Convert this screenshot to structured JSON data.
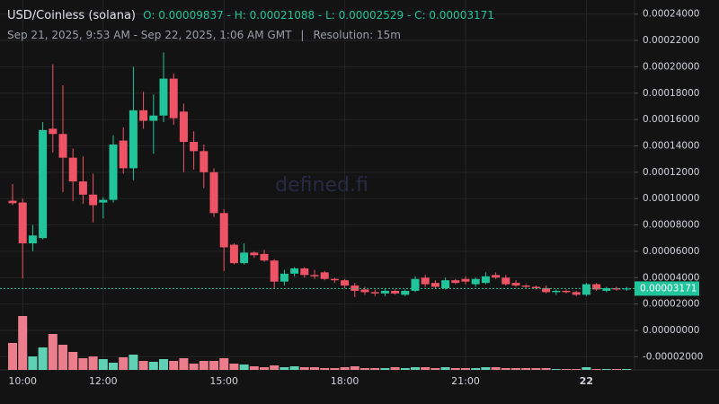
{
  "chart_data": {
    "type": "candlestick",
    "title": "USD/Coinless (solana)",
    "ohlc_summary": "O: 0.00009837 - H: 0.00021088 - L: 0.00002529 - C: 0.00003171",
    "date_range": "Sep 21, 2025, 9:53 AM - Sep 22, 2025, 1:06 AM GMT",
    "resolution": "Resolution: 15m",
    "watermark": "defined.fi",
    "up_color": "#22c49b",
    "down_color": "#ef5466",
    "volume_up_color": "#5fd2b6",
    "volume_down_color": "#ec7d8c",
    "grid": true,
    "categories": [
      null,
      "10:00",
      null,
      null,
      null,
      null,
      null,
      null,
      null,
      "12:00",
      null,
      null,
      null,
      null,
      null,
      null,
      null,
      null,
      null,
      null,
      null,
      "15:00",
      null,
      null,
      null,
      null,
      null,
      null,
      null,
      null,
      null,
      null,
      null,
      "18:00",
      null,
      null,
      null,
      null,
      null,
      null,
      null,
      null,
      null,
      null,
      null,
      "21:00",
      null,
      null,
      null,
      null,
      null,
      null,
      null,
      null,
      null,
      null,
      null,
      "22",
      null,
      null,
      null,
      null
    ],
    "open": [
      9.837e-05,
      9.7e-05,
      6.6e-05,
      7e-05,
      0.000153,
      0.000149,
      0.000131,
      0.000113,
      0.000103,
      9.7e-05,
      9.9e-05,
      0.000144,
      0.000123,
      0.000167,
      0.000159,
      0.000163,
      0.000191,
      0.000166,
      0.000143,
      0.000136,
      0.00012,
      8.9e-05,
      6.5e-05,
      5.1e-05,
      5.9e-05,
      5.8e-05,
      5.3e-05,
      3.7e-05,
      4.3e-05,
      4.7e-05,
      4.2e-05,
      4.4e-05,
      3.9e-05,
      3.8e-05,
      3.4e-05,
      3.1e-05,
      2.9e-05,
      2.8e-05,
      3e-05,
      2.7e-05,
      3e-05,
      4e-05,
      3.6e-05,
      3.2e-05,
      3.8e-05,
      3.9e-05,
      3.5e-05,
      3.6e-05,
      4.2e-05,
      4e-05,
      3.6e-05,
      3.4e-05,
      3.3e-05,
      3.2e-05,
      2.9e-05,
      3e-05,
      2.9e-05,
      2.7e-05,
      3.5e-05,
      3e-05,
      3.2e-05,
      3.1e-05
    ],
    "high": [
      0.000111,
      0.0001,
      8e-05,
      0.000158,
      0.000202,
      0.000186,
      0.000138,
      0.000132,
      0.000119,
      0.000101,
      0.000148,
      0.000154,
      0.0002,
      0.000181,
      0.000179,
      0.00021088,
      0.000195,
      0.000172,
      0.000151,
      0.000141,
      0.000123,
      9.2e-05,
      6.6e-05,
      6.6e-05,
      6e-05,
      6.1e-05,
      5.4e-05,
      4.6e-05,
      4.8e-05,
      4.8e-05,
      4.6e-05,
      4.5e-05,
      4e-05,
      3.9e-05,
      3.6e-05,
      3.3e-05,
      3.1e-05,
      3.2e-05,
      3.1e-05,
      3.1e-05,
      4.1e-05,
      4.2e-05,
      3.8e-05,
      4e-05,
      3.9e-05,
      4.1e-05,
      4e-05,
      4.4e-05,
      4.4e-05,
      4.2e-05,
      3.8e-05,
      3.5e-05,
      3.4e-05,
      3.4e-05,
      3.1e-05,
      3.1e-05,
      3e-05,
      3.6e-05,
      3.6e-05,
      3.3e-05,
      3.3e-05,
      3.3e-05
    ],
    "low": [
      9.5e-05,
      3.94e-05,
      6e-05,
      6.9e-05,
      0.000135,
      0.000105,
      9.8e-05,
      9.6e-05,
      8.2e-05,
      8.5e-05,
      9.7e-05,
      0.000119,
      0.000114,
      0.000153,
      0.000134,
      0.000158,
      0.000156,
      0.00012,
      0.000122,
      0.000108,
      8.6e-05,
      4.5e-05,
      5e-05,
      5e-05,
      5.5e-05,
      5.2e-05,
      3.2e-05,
      3.4e-05,
      4.1e-05,
      4e-05,
      3.9e-05,
      3.8e-05,
      3.6e-05,
      3.2e-05,
      2.529e-05,
      2.7e-05,
      2.6e-05,
      2.6e-05,
      2.7e-05,
      2.6e-05,
      2.9e-05,
      3.3e-05,
      3.2e-05,
      3.1e-05,
      3.5e-05,
      3.5e-05,
      3.3e-05,
      3.5e-05,
      3.9e-05,
      3.4e-05,
      3.3e-05,
      3.2e-05,
      3.1e-05,
      2.8e-05,
      2.7e-05,
      2.8e-05,
      2.6e-05,
      2.6e-05,
      3e-05,
      2.9e-05,
      3e-05,
      3e-05
    ],
    "close": [
      9.65e-05,
      6.6e-05,
      7.2e-05,
      0.000152,
      0.000149,
      0.000131,
      0.000113,
      0.000103,
      9.5e-05,
      9.9e-05,
      0.000141,
      0.000123,
      0.000167,
      0.000159,
      0.000163,
      0.000191,
      0.000161,
      0.000143,
      0.000136,
      0.00012,
      8.9e-05,
      6.3e-05,
      5.1e-05,
      5.9e-05,
      5.7e-05,
      5.3e-05,
      3.7e-05,
      4.3e-05,
      4.7e-05,
      4.2e-05,
      4.1e-05,
      3.9e-05,
      3.8e-05,
      3.4e-05,
      3e-05,
      2.9e-05,
      2.8e-05,
      3e-05,
      2.8e-05,
      3e-05,
      3.9e-05,
      3.5e-05,
      3.3e-05,
      3.8e-05,
      3.6e-05,
      3.7e-05,
      3.9e-05,
      4.1e-05,
      4e-05,
      3.5e-05,
      3.4e-05,
      3.3e-05,
      3.2e-05,
      2.9e-05,
      3e-05,
      2.9e-05,
      2.7e-05,
      3.5e-05,
      3.1e-05,
      3.2e-05,
      3.1e-05,
      3.171e-05
    ],
    "volume": [
      30,
      60,
      15,
      25,
      40,
      28,
      20,
      13,
      15,
      12,
      8,
      14,
      17,
      10,
      9,
      12,
      10,
      13,
      7,
      10,
      10,
      13,
      7,
      6,
      4,
      3,
      5,
      3,
      4,
      3,
      3,
      2,
      2,
      3,
      4,
      2,
      2,
      2,
      3,
      2,
      3,
      3,
      2,
      3,
      2,
      2,
      2,
      3,
      3,
      2,
      2,
      2,
      2,
      2,
      1,
      1,
      1,
      3,
      1,
      1,
      1,
      1
    ],
    "ylim": [
      -3e-05,
      0.00025
    ],
    "yticks": [
      {
        "value": 0.00024,
        "label": "0.00024000"
      },
      {
        "value": 0.00022,
        "label": "0.00022000"
      },
      {
        "value": 0.0002,
        "label": "0.00020000"
      },
      {
        "value": 0.00018,
        "label": "0.00018000"
      },
      {
        "value": 0.00016,
        "label": "0.00016000"
      },
      {
        "value": 0.00014,
        "label": "0.00014000"
      },
      {
        "value": 0.00012,
        "label": "0.00012000"
      },
      {
        "value": 0.0001,
        "label": "0.00010000"
      },
      {
        "value": 8e-05,
        "label": "0.00008000"
      },
      {
        "value": 6e-05,
        "label": "0.00006000"
      },
      {
        "value": 4e-05,
        "label": "0.00004000"
      },
      {
        "value": 2e-05,
        "label": "0.00002000"
      },
      {
        "value": 0,
        "label": "0.00000000"
      },
      {
        "value": -2e-05,
        "label": "-0.00002000"
      }
    ],
    "last_price": {
      "value": 3.171e-05,
      "label": "0.00003171"
    }
  }
}
